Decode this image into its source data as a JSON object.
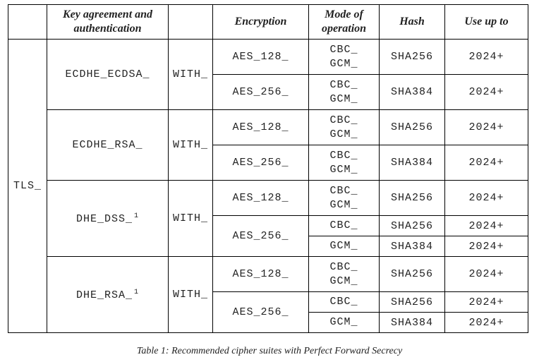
{
  "headers": {
    "key_agreement": "Key agreement and authentication",
    "encryption": "Encryption",
    "mode": "Mode of operation",
    "hash": "Hash",
    "use_up_to": "Use up to"
  },
  "prefix": "TLS_",
  "with": "WITH_",
  "footnote": "1",
  "groups": [
    {
      "kx": "ECDHE_ECDSA_",
      "rows": [
        {
          "enc": "AES_128_",
          "mode": [
            "CBC_",
            "GCM_"
          ],
          "hash": "SHA256",
          "use": "2024+"
        },
        {
          "enc": "AES_256_",
          "mode": [
            "CBC_",
            "GCM_"
          ],
          "hash": "SHA384",
          "use": "2024+"
        }
      ]
    },
    {
      "kx": "ECDHE_RSA_",
      "rows": [
        {
          "enc": "AES_128_",
          "mode": [
            "CBC_",
            "GCM_"
          ],
          "hash": "SHA256",
          "use": "2024+"
        },
        {
          "enc": "AES_256_",
          "mode": [
            "CBC_",
            "GCM_"
          ],
          "hash": "SHA384",
          "use": "2024+"
        }
      ]
    },
    {
      "kx": "DHE_DSS_",
      "rows": [
        {
          "enc": "AES_128_",
          "mode": [
            "CBC_",
            "GCM_"
          ],
          "hash": "SHA256",
          "use": "2024+"
        },
        {
          "enc": "AES_256_",
          "mode": [
            "CBC_"
          ],
          "hash": "SHA256",
          "use": "2024+"
        },
        {
          "mode": [
            "GCM_"
          ],
          "hash": "SHA384",
          "use": "2024+"
        }
      ]
    },
    {
      "kx": "DHE_RSA_",
      "rows": [
        {
          "enc": "AES_128_",
          "mode": [
            "CBC_",
            "GCM_"
          ],
          "hash": "SHA256",
          "use": "2024+"
        },
        {
          "enc": "AES_256_",
          "mode": [
            "CBC_"
          ],
          "hash": "SHA256",
          "use": "2024+"
        },
        {
          "mode": [
            "GCM_"
          ],
          "hash": "SHA384",
          "use": "2024+"
        }
      ]
    }
  ],
  "caption": "Table 1: Recommended cipher suites with Perfect Forward Secrecy"
}
